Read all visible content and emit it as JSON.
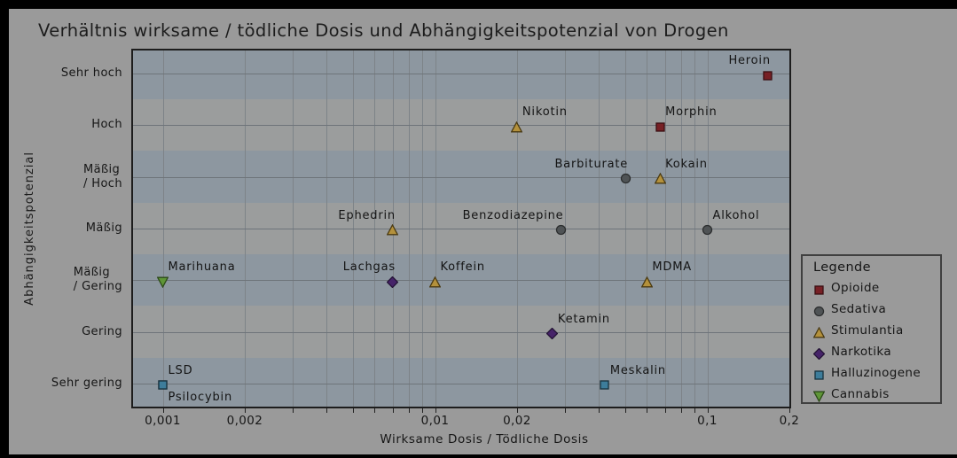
{
  "title": "Verhältnis wirksame / tödliche Dosis und Abhängigkeitspotenzial von Drogen",
  "chart_data": {
    "type": "scatter",
    "title": "Verhältnis wirksame / tödliche Dosis und Abhängigkeitspotenzial von Drogen",
    "xlabel": "Wirksame Dosis / Tödliche Dosis",
    "ylabel": "Abhängigkeitspotenzial",
    "x_scale": "log",
    "x_range": [
      0.0008,
      0.2
    ],
    "grid": true,
    "x_ticks": [
      {
        "value": 0.001,
        "label": "0,001"
      },
      {
        "value": 0.002,
        "label": "0,002"
      },
      {
        "value": 0.01,
        "label": "0,01"
      },
      {
        "value": 0.02,
        "label": "0,02"
      },
      {
        "value": 0.1,
        "label": "0,1"
      },
      {
        "value": 0.2,
        "label": "0,2"
      }
    ],
    "x_minor_grid": [
      0.001,
      0.002,
      0.003,
      0.004,
      0.005,
      0.006,
      0.007,
      0.008,
      0.009,
      0.01,
      0.02,
      0.03,
      0.04,
      0.05,
      0.06,
      0.07,
      0.08,
      0.09,
      0.1,
      0.2
    ],
    "y_categories": [
      {
        "name": "Sehr hoch",
        "lines": "Sehr hoch"
      },
      {
        "name": "Hoch",
        "lines": "Hoch"
      },
      {
        "name": "Mäßig / Hoch",
        "lines": "Mäßig\n/ Hoch"
      },
      {
        "name": "Mäßig",
        "lines": "Mäßig"
      },
      {
        "name": "Mäßig / Gering",
        "lines": "Mäßig\n/ Gering"
      },
      {
        "name": "Gering",
        "lines": "Gering"
      },
      {
        "name": "Sehr gering",
        "lines": "Sehr gering"
      }
    ],
    "legend": {
      "title": "Legende",
      "position": "right",
      "entries": [
        {
          "name": "Opioide",
          "marker": "square",
          "fill": "#772025",
          "stroke": "#3a0f12"
        },
        {
          "name": "Sedativa",
          "marker": "circle",
          "fill": "#4f5355",
          "stroke": "#2b2d2e"
        },
        {
          "name": "Stimulantia",
          "marker": "triangle-up",
          "fill": "#b4913c",
          "stroke": "#4a3a12"
        },
        {
          "name": "Narkotika",
          "marker": "diamond",
          "fill": "#462369",
          "stroke": "#241336"
        },
        {
          "name": "Halluzinogene",
          "marker": "square",
          "fill": "#3d7d9b",
          "stroke": "#17323f"
        },
        {
          "name": "Cannabis",
          "marker": "triangle-down",
          "fill": "#5f9637",
          "stroke": "#2c4a18"
        }
      ]
    },
    "points": [
      {
        "name": "Heroin",
        "category": "Opioide",
        "x": 0.167,
        "y": "Sehr hoch",
        "label_pos": "above-left"
      },
      {
        "name": "Morphin",
        "category": "Opioide",
        "x": 0.067,
        "y": "Hoch",
        "label_pos": "above-right"
      },
      {
        "name": "Nikotin",
        "category": "Stimulantia",
        "x": 0.02,
        "y": "Hoch",
        "label_pos": "above-right"
      },
      {
        "name": "Barbiturate",
        "category": "Sedativa",
        "x": 0.05,
        "y": "Mäßig / Hoch",
        "label_pos": "above-left"
      },
      {
        "name": "Kokain",
        "category": "Stimulantia",
        "x": 0.067,
        "y": "Mäßig / Hoch",
        "label_pos": "above-right"
      },
      {
        "name": "Ephedrin",
        "category": "Stimulantia",
        "x": 0.007,
        "y": "Mäßig",
        "label_pos": "above-left"
      },
      {
        "name": "Benzodiazepine",
        "category": "Sedativa",
        "x": 0.029,
        "y": "Mäßig",
        "label_pos": "above-left"
      },
      {
        "name": "Alkohol",
        "category": "Sedativa",
        "x": 0.1,
        "y": "Mäßig",
        "label_pos": "above-right"
      },
      {
        "name": "Marihuana",
        "category": "Cannabis",
        "x": 0.001,
        "y": "Mäßig / Gering",
        "label_pos": "above-right"
      },
      {
        "name": "Lachgas",
        "category": "Narkotika",
        "x": 0.007,
        "y": "Mäßig / Gering",
        "label_pos": "above-left"
      },
      {
        "name": "Koffein",
        "category": "Stimulantia",
        "x": 0.01,
        "y": "Mäßig / Gering",
        "label_pos": "above-right"
      },
      {
        "name": "MDMA",
        "category": "Stimulantia",
        "x": 0.06,
        "y": "Mäßig / Gering",
        "label_pos": "above-right"
      },
      {
        "name": "Ketamin",
        "category": "Narkotika",
        "x": 0.027,
        "y": "Gering",
        "label_pos": "above-right"
      },
      {
        "name": "LSD",
        "category": "Halluzinogene",
        "x": 0.001,
        "y": "Sehr gering",
        "label_pos": "above-right"
      },
      {
        "name": "Psilocybin",
        "category": "Halluzinogene",
        "x": 0.001,
        "y": "Sehr gering",
        "label_pos": "below-right"
      },
      {
        "name": "Meskalin",
        "category": "Halluzinogene",
        "x": 0.042,
        "y": "Sehr gering",
        "label_pos": "above-right"
      }
    ],
    "style": {
      "figure_bg": "#9a9a9a",
      "page_bg": "#000000",
      "band_blue": "#8d97a0",
      "band_gray": "#9b9d9d",
      "vgrid": "#7d8388",
      "hgrid": "#6e747a",
      "plot_border": "#1d1d1d",
      "text": "#161616"
    }
  }
}
